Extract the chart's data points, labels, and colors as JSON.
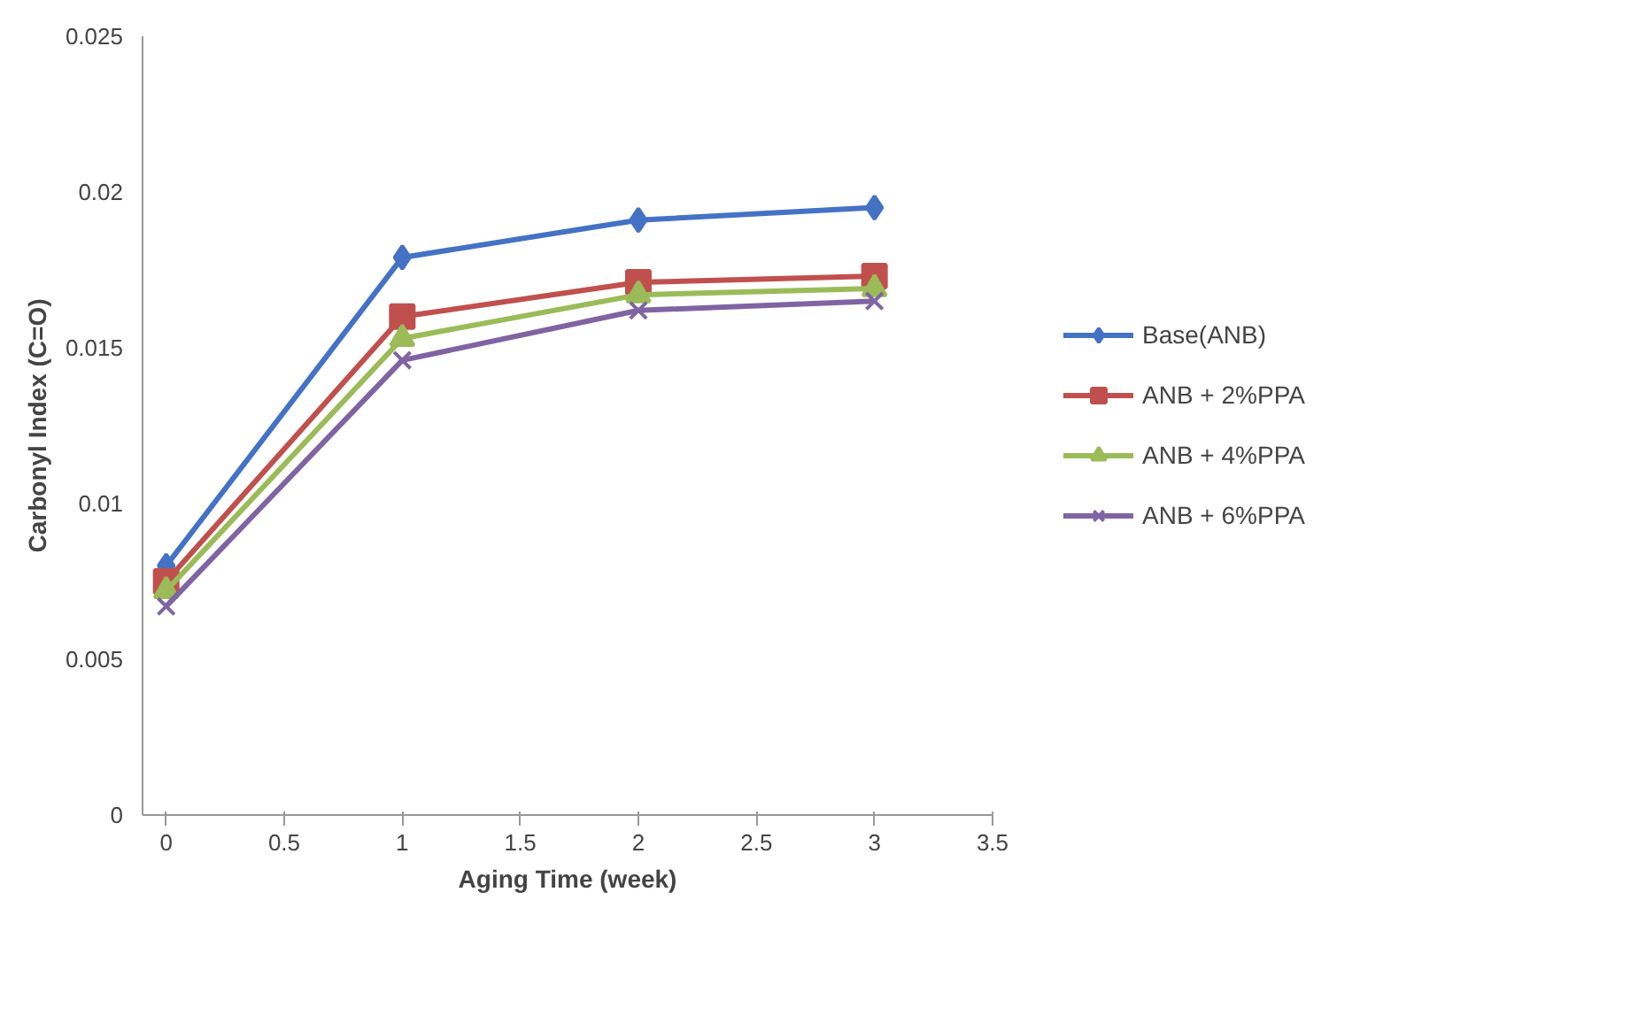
{
  "chart_data": {
    "type": "line",
    "xlabel": "Aging Time (week)",
    "ylabel": "Carbonyl Index (C=O)",
    "x": [
      0,
      1,
      2,
      3
    ],
    "series": [
      {
        "name": "Base(ANB)",
        "color": "#4472c4",
        "marker": "diamond",
        "values": [
          0.008,
          0.0179,
          0.0191,
          0.0195
        ]
      },
      {
        "name": "ANB + 2%PPA",
        "color": "#c0504d",
        "marker": "square",
        "values": [
          0.0075,
          0.016,
          0.0171,
          0.0173
        ]
      },
      {
        "name": "ANB + 4%PPA",
        "color": "#9bbb59",
        "marker": "triangle",
        "values": [
          0.0072,
          0.0153,
          0.0167,
          0.0169
        ]
      },
      {
        "name": "ANB + 6%PPA",
        "color": "#8064a2",
        "marker": "cross",
        "values": [
          0.0067,
          0.0146,
          0.0162,
          0.0165
        ]
      }
    ],
    "xlim": [
      -0.1,
      3.5
    ],
    "xticks": [
      0,
      0.5,
      1,
      1.5,
      2,
      2.5,
      3,
      3.5
    ],
    "ylim": [
      0,
      0.025
    ],
    "yticks": [
      0,
      0.005,
      0.01,
      0.015,
      0.02,
      0.025
    ],
    "grid": false,
    "legend": "right",
    "line_style": "solid"
  }
}
